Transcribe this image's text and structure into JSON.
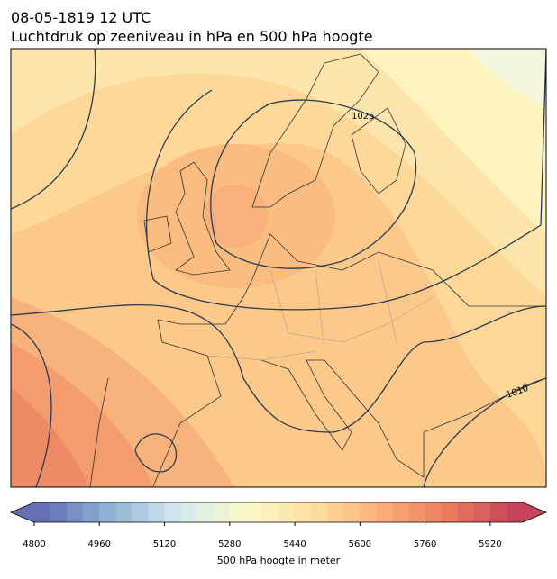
{
  "header": {
    "date": "08-05-1819 12 UTC",
    "title": "Luchtdruk op zeeniveau in hPa en 500 hPa hoogte"
  },
  "contour_labels": [
    "1025",
    "1010"
  ],
  "colorbar": {
    "label": "500 hPa hoogte in meter",
    "vmin": 4800,
    "vmax": 6000,
    "step": 40,
    "ticks": [
      4800,
      4960,
      5120,
      5280,
      5440,
      5600,
      5760,
      5920
    ],
    "colors": [
      "#6470b3",
      "#8eb3d5",
      "#d3e9f1",
      "#fbf9c8",
      "#fde0a0",
      "#f9b07a",
      "#ee7c5e",
      "#c4455c"
    ]
  }
}
